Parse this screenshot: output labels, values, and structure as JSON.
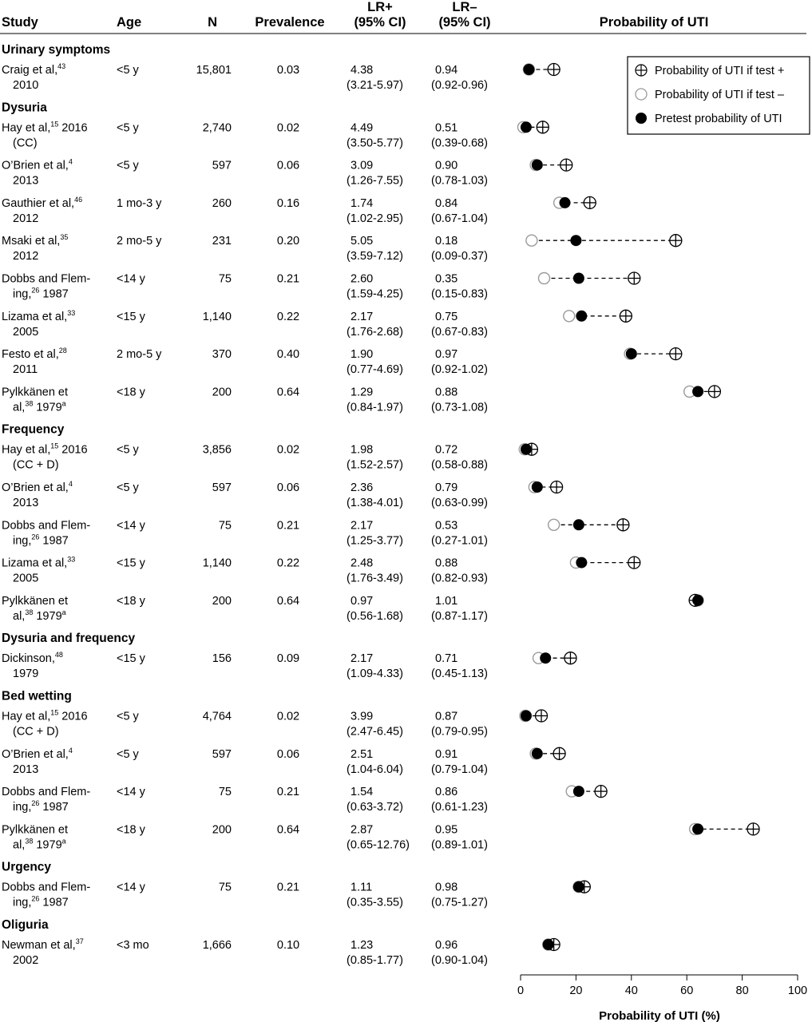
{
  "headers": {
    "study": "Study",
    "age": "Age",
    "n": "N",
    "prevalence": "Prevalence",
    "lr_pos_1": "LR+",
    "lr_pos_2": "(95% CI)",
    "lr_neg_1": "LR–",
    "lr_neg_2": "(95% CI)",
    "prob": "Probability of UTI"
  },
  "legend": {
    "pos": "Probability of UTI if test +",
    "neg": "Probability of UTI if test –",
    "pre": "Pretest probability of UTI"
  },
  "colors": {
    "ink": "#000000",
    "neg_marker": "#9a9a9a",
    "background": "#ffffff"
  },
  "chart_data": {
    "type": "scatter",
    "xlabel": "Probability of UTI (%)",
    "xlim": [
      0,
      100
    ],
    "xticks": [
      0,
      20,
      40,
      60,
      80,
      100
    ],
    "legend_position": "top-right",
    "grid": false,
    "series_names": [
      "Probability of UTI if test +",
      "Probability of UTI if test –",
      "Pretest probability of UTI"
    ],
    "sections": [
      {
        "title": "Urinary symptoms",
        "rows": [
          {
            "study1": "Craig et al,43",
            "study2": "2010",
            "age": "<5 y",
            "n": "15,801",
            "prevalence": "0.03",
            "lrp": "4.38",
            "lrp_ci": "(3.21-5.97)",
            "lrn": "0.94",
            "lrn_ci": "(0.92-0.96)",
            "pre": 3,
            "neg": 3,
            "pos": 12
          }
        ]
      },
      {
        "title": "Dysuria",
        "rows": [
          {
            "study1": "Hay et al,15 2016",
            "study2": "(CC)",
            "age": "<5 y",
            "n": "2,740",
            "prevalence": "0.02",
            "lrp": "4.49",
            "lrp_ci": "(3.50-5.77)",
            "lrn": "0.51",
            "lrn_ci": "(0.39-0.68)",
            "pre": 2,
            "neg": 1,
            "pos": 8
          },
          {
            "study1": "O’Brien et al,4",
            "study2": "2013",
            "age": "<5 y",
            "n": "597",
            "prevalence": "0.06",
            "lrp": "3.09",
            "lrp_ci": "(1.26-7.55)",
            "lrn": "0.90",
            "lrn_ci": "(0.78-1.03)",
            "pre": 6,
            "neg": 5.5,
            "pos": 16.5
          },
          {
            "study1": "Gauthier et al,46",
            "study2": "2012",
            "age": "1 mo-3 y",
            "n": "260",
            "prevalence": "0.16",
            "lrp": "1.74",
            "lrp_ci": "(1.02-2.95)",
            "lrn": "0.84",
            "lrn_ci": "(0.67-1.04)",
            "pre": 16,
            "neg": 14,
            "pos": 25
          },
          {
            "study1": "Msaki et al,35",
            "study2": "2012",
            "age": "2 mo-5 y",
            "n": "231",
            "prevalence": "0.20",
            "lrp": "5.05",
            "lrp_ci": "(3.59-7.12)",
            "lrn": "0.18",
            "lrn_ci": "(0.09-0.37)",
            "pre": 20,
            "neg": 4,
            "pos": 56
          },
          {
            "study1": "Dobbs and Flem-",
            "study2": "ing,26 1987",
            "age": "<14 y",
            "n": "75",
            "prevalence": "0.21",
            "lrp": "2.60",
            "lrp_ci": "(1.59-4.25)",
            "lrn": "0.35",
            "lrn_ci": "(0.15-0.83)",
            "pre": 21,
            "neg": 8.5,
            "pos": 41
          },
          {
            "study1": "Lizama et al,33",
            "study2": "2005",
            "age": "<15 y",
            "n": "1,140",
            "prevalence": "0.22",
            "lrp": "2.17",
            "lrp_ci": "(1.76-2.68)",
            "lrn": "0.75",
            "lrn_ci": "(0.67-0.83)",
            "pre": 22,
            "neg": 17.5,
            "pos": 38
          },
          {
            "study1": "Festo et al,28",
            "study2": "2011",
            "age": "2 mo-5 y",
            "n": "370",
            "prevalence": "0.40",
            "lrp": "1.90",
            "lrp_ci": "(0.77-4.69)",
            "lrn": "0.97",
            "lrn_ci": "(0.92-1.02)",
            "pre": 40,
            "neg": 39.5,
            "pos": 56
          },
          {
            "study1": "Pylkkänen et",
            "study2": "al,38 1979a",
            "age": "<18 y",
            "n": "200",
            "prevalence": "0.64",
            "lrp": "1.29",
            "lrp_ci": "(0.84-1.97)",
            "lrn": "0.88",
            "lrn_ci": "(0.73-1.08)",
            "pre": 64,
            "neg": 61,
            "pos": 70
          }
        ]
      },
      {
        "title": "Frequency",
        "rows": [
          {
            "study1": "Hay et al,15 2016",
            "study2": "(CC + D)",
            "age": "<5 y",
            "n": "3,856",
            "prevalence": "0.02",
            "lrp": "1.98",
            "lrp_ci": "(1.52-2.57)",
            "lrn": "0.72",
            "lrn_ci": "(0.58-0.88)",
            "pre": 2,
            "neg": 1.5,
            "pos": 4
          },
          {
            "study1": "O’Brien et al,4",
            "study2": "2013",
            "age": "<5 y",
            "n": "597",
            "prevalence": "0.06",
            "lrp": "2.36",
            "lrp_ci": "(1.38-4.01)",
            "lrn": "0.79",
            "lrn_ci": "(0.63-0.99)",
            "pre": 6,
            "neg": 5,
            "pos": 13
          },
          {
            "study1": "Dobbs and Flem-",
            "study2": "ing,26 1987",
            "age": "<14 y",
            "n": "75",
            "prevalence": "0.21",
            "lrp": "2.17",
            "lrp_ci": "(1.25-3.77)",
            "lrn": "0.53",
            "lrn_ci": "(0.27-1.01)",
            "pre": 21,
            "neg": 12,
            "pos": 37
          },
          {
            "study1": "Lizama et al,33",
            "study2": "2005",
            "age": "<15 y",
            "n": "1,140",
            "prevalence": "0.22",
            "lrp": "2.48",
            "lrp_ci": "(1.76-3.49)",
            "lrn": "0.88",
            "lrn_ci": "(0.82-0.93)",
            "pre": 22,
            "neg": 20,
            "pos": 41
          },
          {
            "study1": "Pylkkänen et",
            "study2": "al,38 1979a",
            "age": "<18 y",
            "n": "200",
            "prevalence": "0.64",
            "lrp": "0.97",
            "lrp_ci": "(0.56-1.68)",
            "lrn": "1.01",
            "lrn_ci": "(0.87-1.17)",
            "pre": 64,
            "neg": 64,
            "pos": 63
          }
        ]
      },
      {
        "title": "Dysuria and frequency",
        "rows": [
          {
            "study1": "Dickinson,48",
            "study2": "1979",
            "age": "<15 y",
            "n": "156",
            "prevalence": "0.09",
            "lrp": "2.17",
            "lrp_ci": "(1.09-4.33)",
            "lrn": "0.71",
            "lrn_ci": "(0.45-1.13)",
            "pre": 9,
            "neg": 6.5,
            "pos": 18
          }
        ]
      },
      {
        "title": "Bed wetting",
        "rows": [
          {
            "study1": "Hay et al,15 2016",
            "study2": "(CC + D)",
            "age": "<5 y",
            "n": "4,764",
            "prevalence": "0.02",
            "lrp": "3.99",
            "lrp_ci": "(2.47-6.45)",
            "lrn": "0.87",
            "lrn_ci": "(0.79-0.95)",
            "pre": 2,
            "neg": 1.7,
            "pos": 7.5
          },
          {
            "study1": "O’Brien et al,4",
            "study2": "2013",
            "age": "<5 y",
            "n": "597",
            "prevalence": "0.06",
            "lrp": "2.51",
            "lrp_ci": "(1.04-6.04)",
            "lrn": "0.91",
            "lrn_ci": "(0.79-1.04)",
            "pre": 6,
            "neg": 5.5,
            "pos": 14
          },
          {
            "study1": "Dobbs and Flem-",
            "study2": "ing,26 1987",
            "age": "<14 y",
            "n": "75",
            "prevalence": "0.21",
            "lrp": "1.54",
            "lrp_ci": "(0.63-3.72)",
            "lrn": "0.86",
            "lrn_ci": "(0.61-1.23)",
            "pre": 21,
            "neg": 18.5,
            "pos": 29
          },
          {
            "study1": "Pylkkänen et",
            "study2": "al,38 1979a",
            "age": "<18 y",
            "n": "200",
            "prevalence": "0.64",
            "lrp": "2.87",
            "lrp_ci": "(0.65-12.76)",
            "lrn": "0.95",
            "lrn_ci": "(0.89-1.01)",
            "pre": 64,
            "neg": 63,
            "pos": 84
          }
        ]
      },
      {
        "title": "Urgency",
        "rows": [
          {
            "study1": "Dobbs and Flem-",
            "study2": "ing,26 1987",
            "age": "<14 y",
            "n": "75",
            "prevalence": "0.21",
            "lrp": "1.11",
            "lrp_ci": "(0.35-3.55)",
            "lrn": "0.98",
            "lrn_ci": "(0.75-1.27)",
            "pre": 21,
            "neg": 21,
            "pos": 23
          }
        ]
      },
      {
        "title": "Oliguria",
        "rows": [
          {
            "study1": "Newman et al,37",
            "study2": "2002",
            "age": "<3 mo",
            "n": "1,666",
            "prevalence": "0.10",
            "lrp": "1.23",
            "lrp_ci": "(0.85-1.77)",
            "lrn": "0.96",
            "lrn_ci": "(0.90-1.04)",
            "pre": 10,
            "neg": 10,
            "pos": 12
          }
        ]
      }
    ]
  }
}
